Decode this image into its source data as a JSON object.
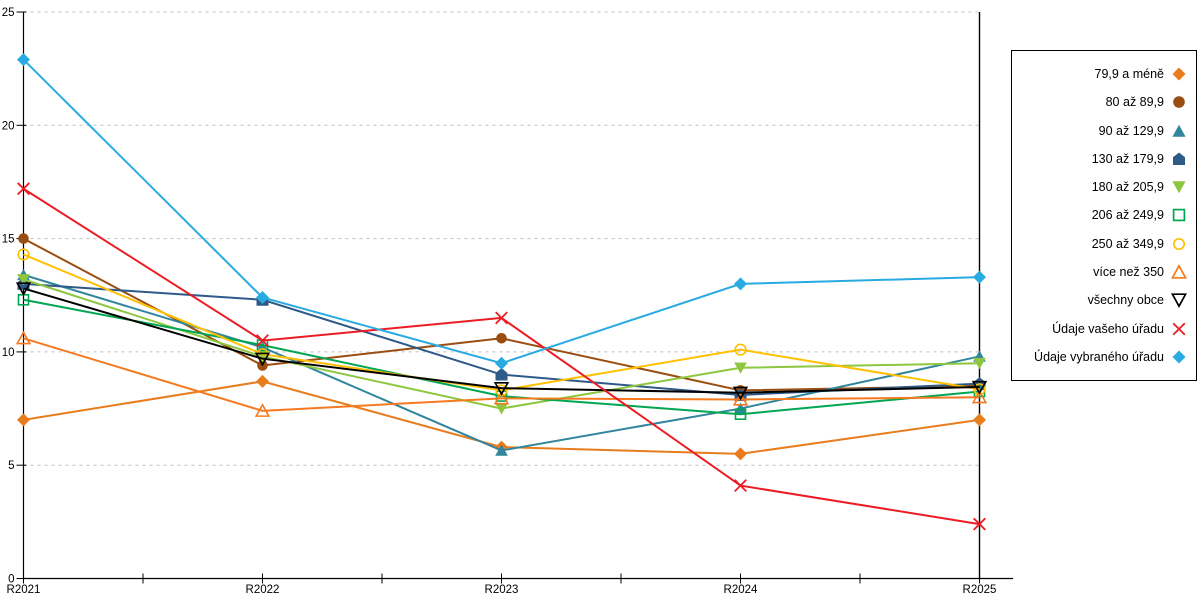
{
  "chart_data": {
    "type": "line",
    "categories": [
      "R2021",
      "R2022",
      "R2023",
      "R2024",
      "R2025"
    ],
    "ylim": [
      0,
      25
    ],
    "yticks": [
      0,
      5,
      10,
      15,
      20,
      25
    ],
    "grid": "horizontal-dashed",
    "grid_color": "#BFBFBF",
    "legend_position": "right",
    "series": [
      {
        "name": "79,9 a méně",
        "color": "#E87D1E",
        "marker": "diamond",
        "fill": "solid",
        "values": [
          7.0,
          8.7,
          5.8,
          5.5,
          7.0
        ]
      },
      {
        "name": "80 až 89,9",
        "color": "#9A4D10",
        "marker": "circle",
        "fill": "solid",
        "values": [
          15.0,
          9.4,
          10.6,
          8.3,
          8.5
        ]
      },
      {
        "name": "90 až 129,9",
        "color": "#31859C",
        "marker": "triangle-up",
        "fill": "solid",
        "values": [
          13.4,
          10.2,
          5.65,
          7.5,
          9.8
        ]
      },
      {
        "name": "130 až 179,9",
        "color": "#2E5A88",
        "marker": "pentagon",
        "fill": "solid",
        "values": [
          13.0,
          12.3,
          9.0,
          8.1,
          8.6
        ]
      },
      {
        "name": "180 až 205,9",
        "color": "#8DC63F",
        "marker": "triangle-down",
        "fill": "solid",
        "values": [
          13.2,
          9.8,
          7.5,
          9.3,
          9.5
        ]
      },
      {
        "name": "206 až 249,9",
        "color": "#00A651",
        "marker": "square",
        "fill": "open",
        "values": [
          12.3,
          10.3,
          8.05,
          7.25,
          8.25
        ]
      },
      {
        "name": "250 až 349,9",
        "color": "#FFC000",
        "marker": "circle",
        "fill": "open",
        "values": [
          14.3,
          9.9,
          8.3,
          10.1,
          8.35
        ]
      },
      {
        "name": "více než 350",
        "color": "#F4791F",
        "marker": "triangle-up",
        "fill": "open",
        "values": [
          10.6,
          7.4,
          7.95,
          7.9,
          8.0
        ]
      },
      {
        "name": "všechny obce",
        "color": "#000000",
        "marker": "triangle-down",
        "fill": "open",
        "values": [
          12.8,
          9.7,
          8.4,
          8.2,
          8.45
        ]
      },
      {
        "name": "Údaje vašeho úřadu",
        "color": "#EC1C24",
        "marker": "x",
        "fill": "open",
        "values": [
          17.2,
          10.5,
          11.5,
          4.1,
          2.4
        ]
      },
      {
        "name": "Údaje vybraného úřadu",
        "color": "#29ABE2",
        "marker": "diamond",
        "fill": "solid",
        "values": [
          22.9,
          12.4,
          9.5,
          13.0,
          13.3
        ]
      }
    ]
  }
}
